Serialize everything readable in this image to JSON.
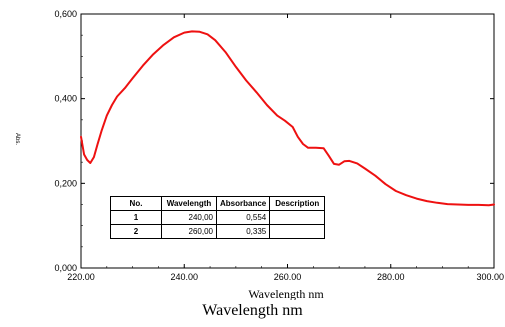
{
  "chart_data": {
    "type": "line",
    "xlabel": "Wavelength nm",
    "ylabel": "Abs.",
    "xlim": [
      220,
      300
    ],
    "ylim": [
      0,
      0.6
    ],
    "x_ticks": [
      "220.00",
      "240.00",
      "260.00",
      "280.00",
      "300.00"
    ],
    "y_ticks": [
      "0,000",
      "0,200",
      "0,400",
      "0,600"
    ],
    "grid": false,
    "series": [
      {
        "color": "#ee1111",
        "x": [
          220.0,
          220.6,
          221.2,
          221.8,
          222.5,
          223.2,
          224.0,
          225.0,
          226.0,
          227.0,
          228.5,
          230.0,
          232.0,
          234.0,
          236.0,
          238.0,
          240.0,
          241.5,
          243.0,
          244.5,
          246.0,
          248.0,
          250.0,
          252.0,
          254.0,
          256.0,
          258.0,
          259.5,
          261.0,
          262.0,
          263.0,
          264.0,
          265.5,
          267.0,
          268.0,
          269.0,
          270.0,
          271.0,
          272.0,
          273.5,
          275.0,
          277.0,
          279.0,
          281.0,
          283.0,
          285.0,
          287.0,
          289.0,
          291.0,
          293.0,
          295.0,
          297.0,
          299.0,
          300.0
        ],
        "y": [
          0.31,
          0.268,
          0.255,
          0.248,
          0.262,
          0.292,
          0.325,
          0.36,
          0.385,
          0.405,
          0.425,
          0.448,
          0.478,
          0.505,
          0.527,
          0.545,
          0.556,
          0.559,
          0.558,
          0.552,
          0.538,
          0.51,
          0.475,
          0.443,
          0.415,
          0.385,
          0.36,
          0.348,
          0.333,
          0.31,
          0.293,
          0.284,
          0.284,
          0.283,
          0.265,
          0.246,
          0.244,
          0.252,
          0.253,
          0.247,
          0.235,
          0.218,
          0.198,
          0.182,
          0.172,
          0.164,
          0.158,
          0.154,
          0.151,
          0.15,
          0.149,
          0.149,
          0.148,
          0.15
        ]
      }
    ]
  },
  "peak_table": {
    "headers": [
      "No.",
      "Wavelength",
      "Absorbance",
      "Description"
    ],
    "rows": [
      {
        "no": "1",
        "wavelength": "240,00",
        "absorbance": "0,554",
        "description": ""
      },
      {
        "no": "2",
        "wavelength": "260,00",
        "absorbance": "0,335",
        "description": ""
      }
    ]
  },
  "caption": "Wavelength nm"
}
